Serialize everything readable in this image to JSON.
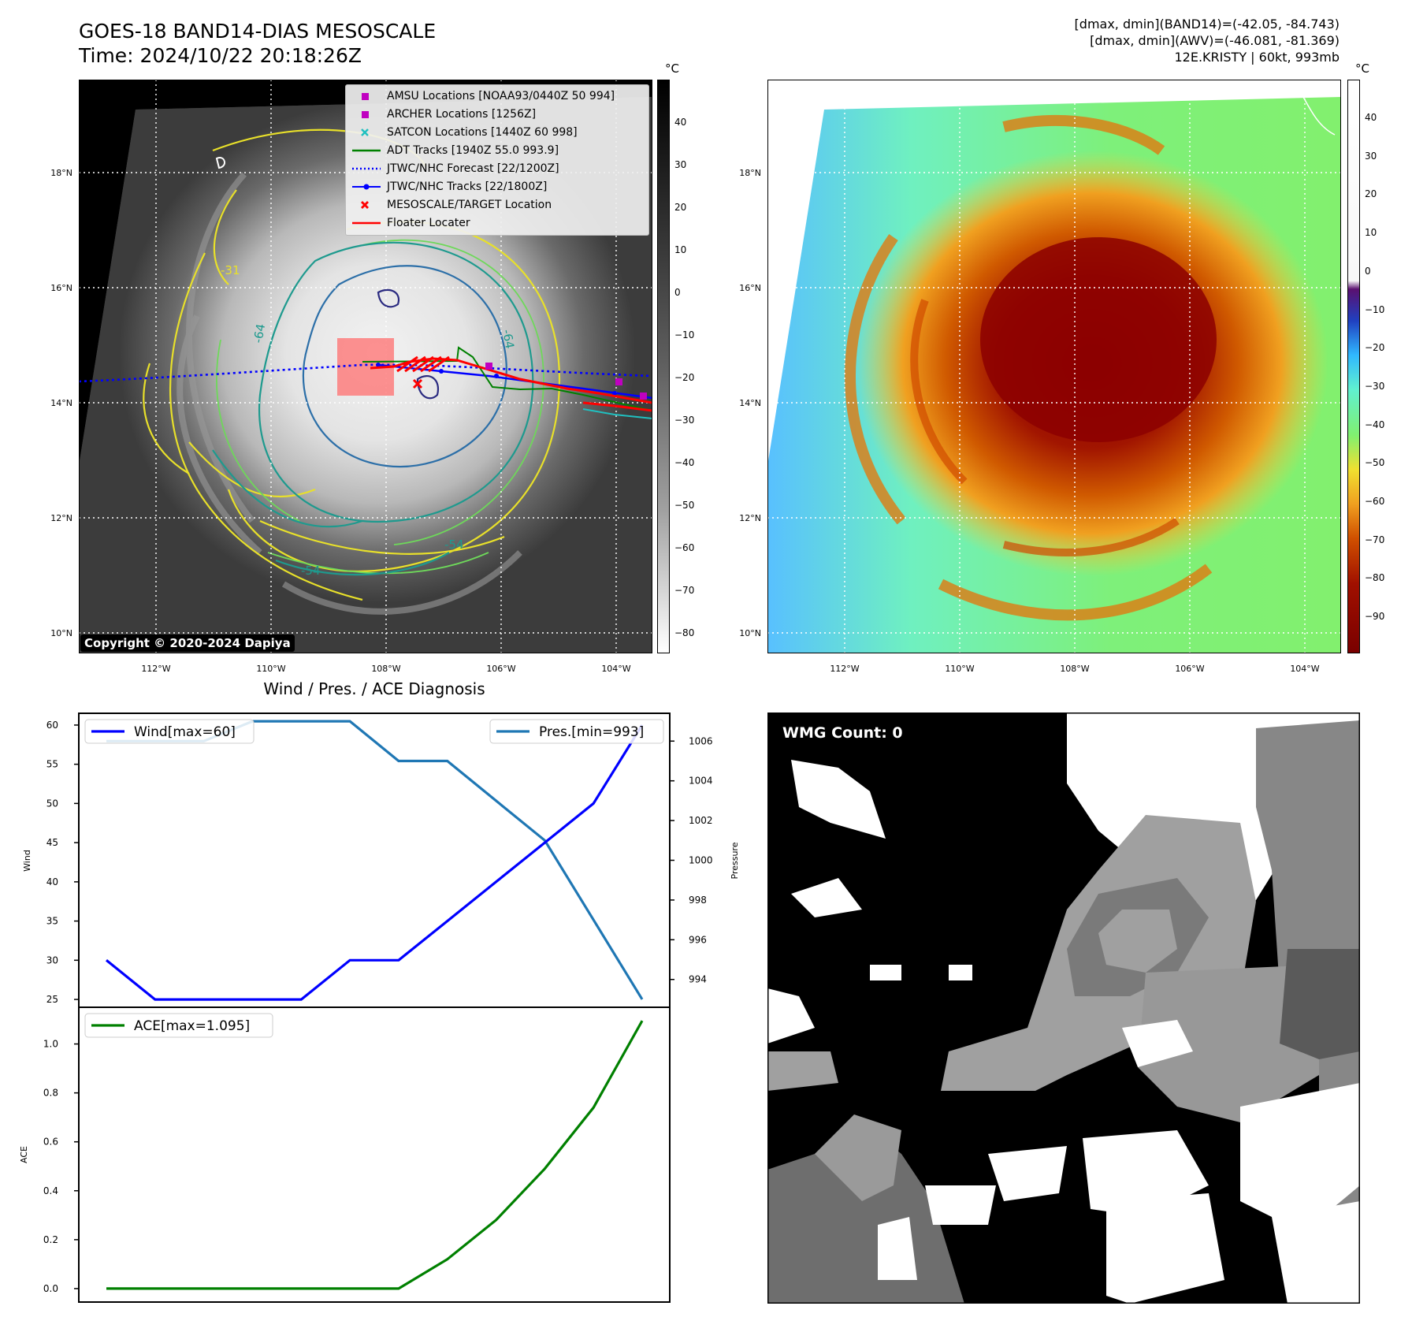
{
  "header": {
    "title_line1": "GOES-18 BAND14-DIAS MESOSCALE",
    "title_line2": "Time: 2024/10/22 20:18:26Z",
    "info_line1": "[dmax, dmin](BAND14)=(-42.05, -84.743)",
    "info_line2": "[dmax, dmin](AWV)=(-46.081, -81.369)",
    "info_line3": "12E.KRISTY | 60kt, 993mb"
  },
  "ir_panel": {
    "lat_labels": [
      "18°N",
      "16°N",
      "14°N",
      "12°N",
      "10°N"
    ],
    "lon_labels": [
      "112°W",
      "110°W",
      "108°W",
      "106°W",
      "104°W"
    ],
    "copyright": "Copyright © 2020-2024 Dapiya",
    "contour_labels": [
      "-31",
      "-64",
      "-64",
      "-54",
      "-54"
    ],
    "colorbar_unit": "°C",
    "colorbar_ticks": [
      "40",
      "30",
      "20",
      "10",
      "0",
      "−10",
      "−20",
      "−30",
      "−40",
      "−50",
      "−60",
      "−70",
      "−80"
    ]
  },
  "legend": {
    "items": [
      {
        "label": "AMSU Locations [NOAA93/0440Z 50 994]",
        "color": "#c000c0",
        "symbol": "square"
      },
      {
        "label": "ARCHER Locations [1256Z]",
        "color": "#c000c0",
        "symbol": "square"
      },
      {
        "label": "SATCON Locations [1440Z 60 998]",
        "color": "#20c0c0",
        "symbol": "x"
      },
      {
        "label": "ADT Tracks [1940Z 55.0 993.9]",
        "color": "#008000",
        "symbol": "line"
      },
      {
        "label": "JTWC/NHC Forecast [22/1200Z]",
        "color": "#0000ff",
        "symbol": "dotted"
      },
      {
        "label": "JTWC/NHC Tracks [22/1800Z]",
        "color": "#0000ff",
        "symbol": "line-dot"
      },
      {
        "label": "MESOSCALE/TARGET Location",
        "color": "#ff0000",
        "symbol": "x"
      },
      {
        "label": "Floater Locater",
        "color": "#ff0000",
        "symbol": "line"
      }
    ]
  },
  "awv_panel": {
    "lat_labels": [
      "18°N",
      "16°N",
      "14°N",
      "12°N",
      "10°N"
    ],
    "lon_labels": [
      "112°W",
      "110°W",
      "108°W",
      "106°W",
      "104°W"
    ],
    "colorbar_unit": "°C",
    "colorbar_ticks": [
      "40",
      "30",
      "20",
      "10",
      "0",
      "−10",
      "−20",
      "−30",
      "−40",
      "−50",
      "−60",
      "−70",
      "−80",
      "−90"
    ]
  },
  "wmg_panel": {
    "label": "WMG Count: 0"
  },
  "chart_data": [
    {
      "type": "line",
      "title": "Wind / Pres. / ACE Diagnosis",
      "x": [
        0,
        1,
        2,
        3,
        4,
        5,
        6,
        7,
        8,
        9,
        10,
        11
      ],
      "series": [
        {
          "name": "Wind[max=60]",
          "axis": "left",
          "color": "#0000ff",
          "values": [
            30,
            25,
            25,
            25,
            25,
            30,
            30,
            35,
            40,
            45,
            50,
            60
          ]
        },
        {
          "name": "Pres.[min=993]",
          "axis": "right",
          "color": "#1f77b4",
          "values": [
            1006,
            1006,
            1006,
            1007,
            1007,
            1007,
            1005,
            1005,
            1003,
            1001,
            997,
            993
          ]
        }
      ],
      "ylabel": "Wind",
      "ylabel_right": "Pressure",
      "ylim": [
        24,
        61.5
      ],
      "ylim_right": [
        992.6,
        1007.4
      ],
      "yticks": [
        25,
        30,
        35,
        40,
        45,
        50,
        55,
        60
      ],
      "yticks_right": [
        994,
        996,
        998,
        1000,
        1002,
        1004,
        1006
      ]
    },
    {
      "type": "line",
      "x": [
        0,
        1,
        2,
        3,
        4,
        5,
        6,
        7,
        8,
        9,
        10,
        11
      ],
      "series": [
        {
          "name": "ACE[max=1.095]",
          "color": "#008000",
          "values": [
            0,
            0,
            0,
            0,
            0,
            0,
            0,
            0.12,
            0.28,
            0.49,
            0.74,
            1.095
          ]
        }
      ],
      "ylabel": "ACE",
      "ylim": [
        -0.055,
        1.15
      ],
      "yticks": [
        0.0,
        0.2,
        0.4,
        0.6,
        0.8,
        1.0
      ],
      "ytick_labels": [
        "0.0",
        "0.2",
        "0.4",
        "0.6",
        "0.8",
        "1.0"
      ]
    }
  ]
}
